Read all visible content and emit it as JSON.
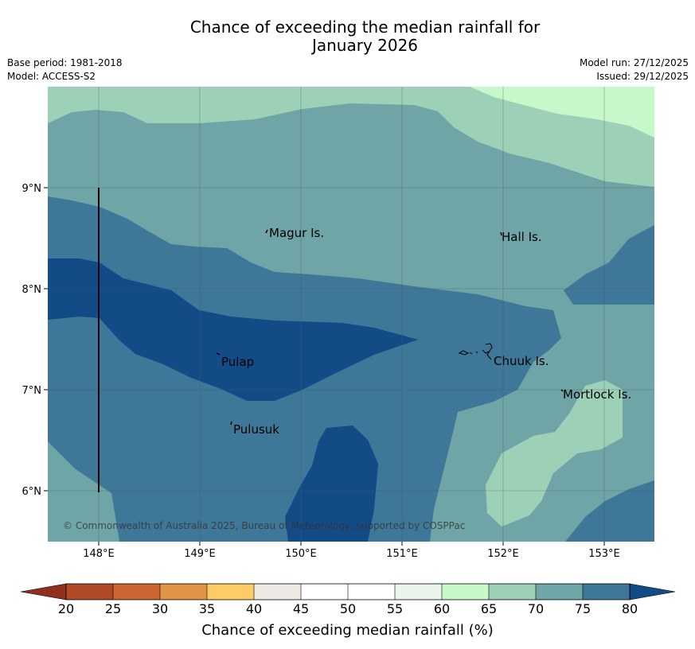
{
  "header": {
    "title_line1": "Chance of exceeding the median rainfall for",
    "title_line2": "January 2026",
    "base_period": "Base period: 1981-2018",
    "model": "Model: ACCESS-S2",
    "model_run": "Model run: 27/12/2025",
    "issued": "Issued: 29/12/2025"
  },
  "map": {
    "lon_ticks": [
      "148°E",
      "149°E",
      "150°E",
      "151°E",
      "152°E",
      "153°E"
    ],
    "lat_ticks": [
      "9°N",
      "8°N",
      "7°N",
      "6°N"
    ],
    "places": [
      {
        "name": "Magur Is."
      },
      {
        "name": "Hall Is."
      },
      {
        "name": "Pulap"
      },
      {
        "name": "Chuuk Is."
      },
      {
        "name": "Mortlock Is."
      },
      {
        "name": "Pulusuk"
      }
    ],
    "copyright": "© Commonwealth of Australia 2025, Bureau of Meteorology, supported by COSPPac"
  },
  "colorbar": {
    "ticks": [
      "20",
      "25",
      "30",
      "35",
      "40",
      "45",
      "50",
      "55",
      "60",
      "65",
      "70",
      "75",
      "80"
    ],
    "label": "Chance of exceeding median rainfall (%)",
    "colors": {
      "under": "#8f2f1c",
      "c20": "#b04a26",
      "c25": "#cc6532",
      "c30": "#e09448",
      "c35": "#fdcc66",
      "c40": "#ede9e4",
      "c45": "#ffffff",
      "c50": "#ffffff",
      "c55": "#eaf4ea",
      "c60": "#c7f8c9",
      "c65": "#9cd1b8",
      "c70": "#6fa5a7",
      "c75": "#3f7799",
      "over": "#134b87"
    }
  }
}
